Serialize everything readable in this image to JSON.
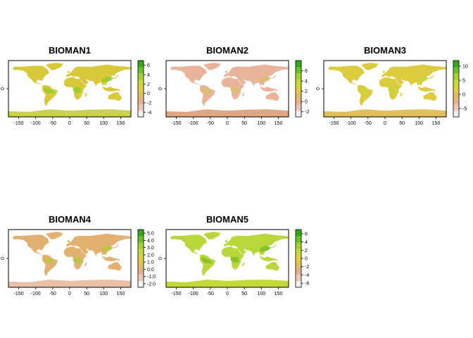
{
  "chart_data": [
    {
      "type": "heatmap",
      "title": "BIOMAN1",
      "xlabel": "",
      "ylabel": "",
      "x_ticks": [
        "-150",
        "-100",
        "-50",
        "0",
        "50",
        "100",
        "150"
      ],
      "y_ticks": [
        "0"
      ],
      "xlim": [
        -180,
        180
      ],
      "ylim": [
        -90,
        90
      ],
      "legend_ticks": [
        "6",
        "4",
        "2",
        "0",
        "-2",
        "-4"
      ],
      "legend_range": [
        -5,
        7
      ],
      "land_color": "#d9c83a",
      "south_color": "#c9d24a",
      "accent_color": "#8fce34"
    },
    {
      "type": "heatmap",
      "title": "BIOMAN2",
      "xlabel": "",
      "ylabel": "",
      "x_ticks": [
        "-150",
        "-100",
        "-50",
        "0",
        "50",
        "100",
        "150"
      ],
      "y_ticks": [
        "0"
      ],
      "xlim": [
        -180,
        180
      ],
      "ylim": [
        -90,
        90
      ],
      "legend_ticks": [
        "6",
        "4",
        "2",
        "0",
        "-2"
      ],
      "legend_range": [
        -3,
        8
      ],
      "land_color": "#e8b59a",
      "south_color": "#e0a882",
      "accent_color": "#d9c06a"
    },
    {
      "type": "heatmap",
      "title": "BIOMAN3",
      "xlabel": "",
      "ylabel": "",
      "x_ticks": [
        "-150",
        "-100",
        "-50",
        "0",
        "50",
        "100",
        "150"
      ],
      "y_ticks": [
        "0"
      ],
      "xlim": [
        -180,
        180
      ],
      "ylim": [
        -90,
        90
      ],
      "legend_ticks": [
        "10",
        "5",
        "0",
        "-5"
      ],
      "legend_range": [
        -8,
        12
      ],
      "land_color": "#dccb3e",
      "south_color": "#e1c05a",
      "accent_color": "#c8d63a"
    },
    {
      "type": "heatmap",
      "title": "BIOMAN4",
      "xlabel": "",
      "ylabel": "",
      "x_ticks": [
        "-150",
        "-100",
        "-50",
        "0",
        "50",
        "100",
        "150"
      ],
      "y_ticks": [
        "0"
      ],
      "xlim": [
        -180,
        180
      ],
      "ylim": [
        -90,
        90
      ],
      "legend_ticks": [
        "5.0",
        "4.0",
        "3.0",
        "2.0",
        "1.0",
        "0.0",
        "-1.0",
        "-2.0"
      ],
      "legend_range": [
        -2.5,
        5.5
      ],
      "land_color": "#e2b070",
      "south_color": "#eac0a8",
      "accent_color": "#b8c63e"
    },
    {
      "type": "heatmap",
      "title": "BIOMAN5",
      "xlabel": "",
      "ylabel": "",
      "x_ticks": [
        "-150",
        "-100",
        "-50",
        "0",
        "50",
        "100",
        "150"
      ],
      "y_ticks": [
        "0"
      ],
      "xlim": [
        -180,
        180
      ],
      "ylim": [
        -90,
        90
      ],
      "legend_ticks": [
        "6",
        "4",
        "2",
        "0",
        "-2",
        "-4",
        "-6"
      ],
      "legend_range": [
        -7,
        7
      ],
      "land_color": "#b9d63a",
      "south_color": "#c4d838",
      "accent_color": "#7cc226"
    }
  ],
  "colors": {
    "scale": [
      "#f2f2f2",
      "#edc8b8",
      "#e8b090",
      "#e0be62",
      "#e1d040",
      "#c8d838",
      "#a6d030",
      "#6cc028",
      "#34a81a"
    ],
    "frame": "#000000"
  }
}
